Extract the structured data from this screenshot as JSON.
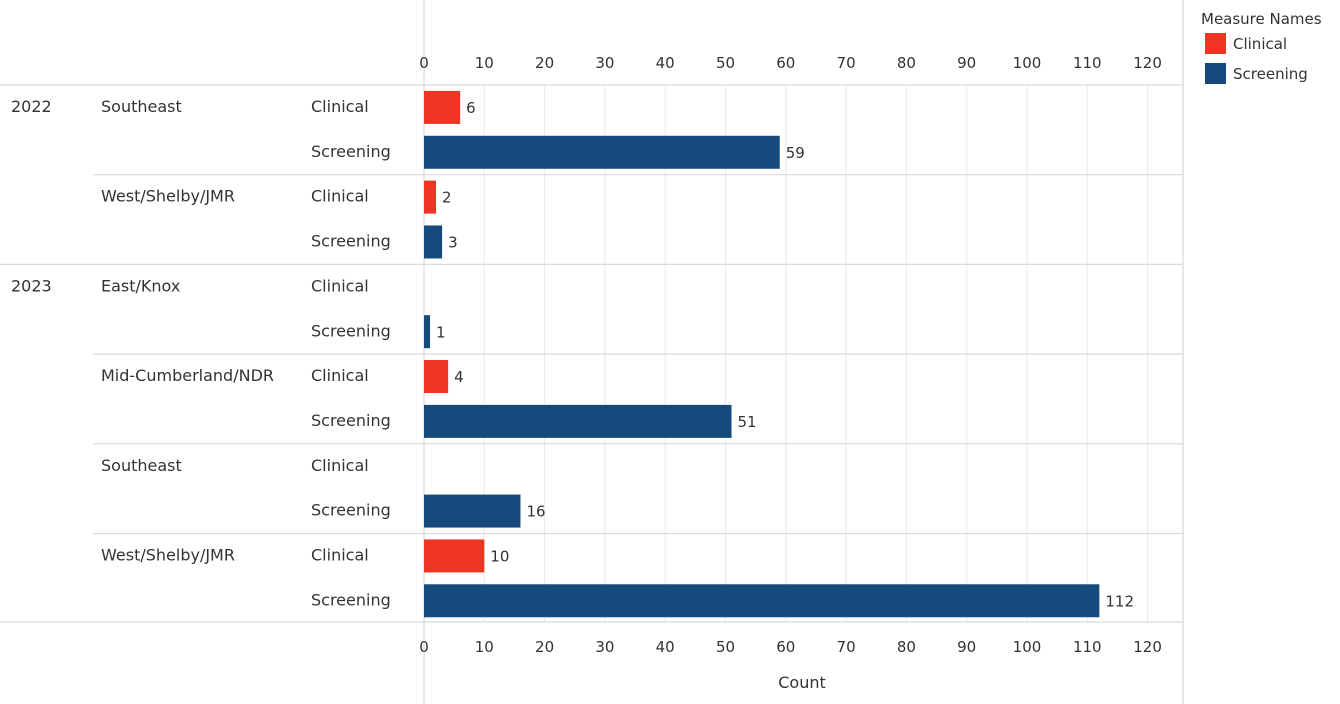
{
  "chart_data": {
    "type": "bar",
    "orientation": "horizontal",
    "xlabel": "Count",
    "xlim": [
      0,
      120
    ],
    "ticks": [
      0,
      10,
      20,
      30,
      40,
      50,
      60,
      70,
      80,
      90,
      100,
      110,
      120
    ],
    "legend": {
      "title": "Measure Names",
      "position": "top-right",
      "items": [
        {
          "name": "Clinical",
          "color": "#ee3524"
        },
        {
          "name": "Screening",
          "color": "#174a7c"
        }
      ]
    },
    "grid": true,
    "groups": [
      {
        "year": "2022",
        "regions": [
          {
            "name": "Southeast",
            "measures": [
              {
                "name": "Clinical",
                "value": 6
              },
              {
                "name": "Screening",
                "value": 59
              }
            ]
          },
          {
            "name": "West/Shelby/JMR",
            "measures": [
              {
                "name": "Clinical",
                "value": 2
              },
              {
                "name": "Screening",
                "value": 3
              }
            ]
          }
        ]
      },
      {
        "year": "2023",
        "regions": [
          {
            "name": "East/Knox",
            "measures": [
              {
                "name": "Clinical",
                "value": null
              },
              {
                "name": "Screening",
                "value": 1
              }
            ]
          },
          {
            "name": "Mid-Cumberland/NDR",
            "measures": [
              {
                "name": "Clinical",
                "value": 4
              },
              {
                "name": "Screening",
                "value": 51
              }
            ]
          },
          {
            "name": "Southeast",
            "measures": [
              {
                "name": "Clinical",
                "value": null
              },
              {
                "name": "Screening",
                "value": 16
              }
            ]
          },
          {
            "name": "West/Shelby/JMR",
            "measures": [
              {
                "name": "Clinical",
                "value": 10
              },
              {
                "name": "Screening",
                "value": 112
              }
            ]
          }
        ]
      }
    ]
  }
}
